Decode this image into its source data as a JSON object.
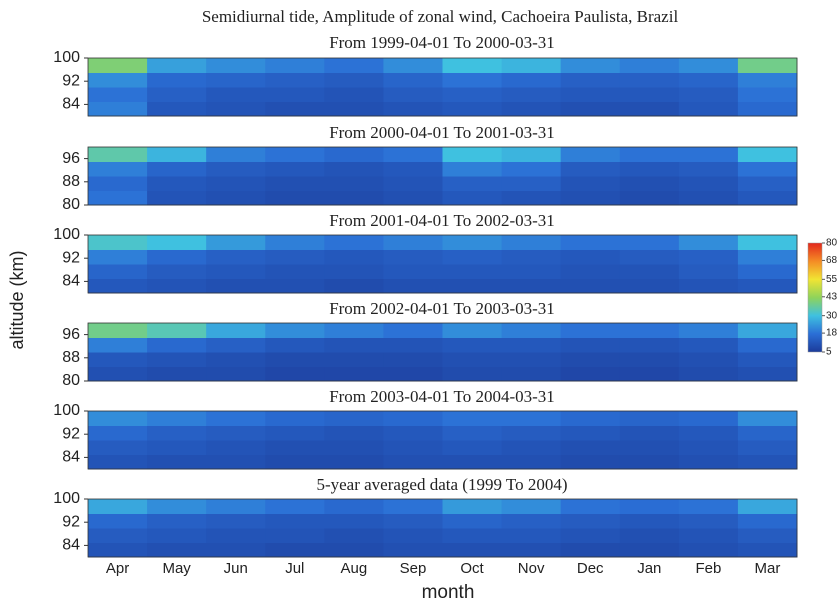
{
  "chart_data": {
    "type": "heatmap",
    "title": "Semidiurnal tide, Amplitude of zonal wind, Cachoeira Paulista, Brazil",
    "xlabel": "month",
    "ylabel": "altitude (km)",
    "categories": [
      "Apr",
      "May",
      "Jun",
      "Jul",
      "Aug",
      "Sep",
      "Oct",
      "Nov",
      "Dec",
      "Jan",
      "Feb",
      "Mar"
    ],
    "alt_bins": [
      80,
      85,
      90,
      95,
      100
    ],
    "colorbar": {
      "lim": [
        5,
        80
      ],
      "ticks": [
        5,
        18,
        30,
        43,
        55,
        68,
        80
      ],
      "colors": [
        "#1c3b9a",
        "#2b6fd6",
        "#3fc1e0",
        "#8fd35a",
        "#f1e433",
        "#f48b25",
        "#e3271c"
      ]
    },
    "panels": [
      {
        "title": "From 1999-04-01 To 2000-03-31",
        "ylim": [
          80,
          100
        ],
        "yticks": [
          100,
          92,
          84
        ],
        "z": [
          [
            20,
            12,
            11,
            10,
            10,
            11,
            12,
            11,
            10,
            10,
            12,
            16
          ],
          [
            18,
            14,
            12,
            12,
            11,
            13,
            14,
            13,
            12,
            12,
            13,
            18
          ],
          [
            22,
            16,
            15,
            14,
            13,
            15,
            18,
            16,
            14,
            14,
            15,
            20
          ],
          [
            40,
            25,
            22,
            20,
            18,
            22,
            30,
            28,
            22,
            20,
            22,
            38
          ]
        ]
      },
      {
        "title": "From 2000-04-01 To 2001-03-31",
        "ylim": [
          80,
          100
        ],
        "yticks": [
          96,
          88,
          80
        ],
        "z": [
          [
            18,
            11,
            10,
            9,
            9,
            10,
            12,
            11,
            10,
            9,
            10,
            12
          ],
          [
            16,
            12,
            11,
            10,
            10,
            11,
            14,
            14,
            11,
            10,
            11,
            14
          ],
          [
            20,
            15,
            13,
            12,
            11,
            12,
            20,
            18,
            13,
            12,
            13,
            18
          ],
          [
            35,
            28,
            20,
            18,
            16,
            18,
            30,
            28,
            20,
            18,
            18,
            30
          ]
        ]
      },
      {
        "title": "From 2001-04-01 To 2002-03-31",
        "ylim": [
          80,
          100
        ],
        "yticks": [
          100,
          92,
          84
        ],
        "z": [
          [
            12,
            11,
            10,
            10,
            9,
            10,
            10,
            10,
            10,
            10,
            11,
            12
          ],
          [
            15,
            13,
            12,
            11,
            11,
            12,
            12,
            12,
            11,
            11,
            13,
            16
          ],
          [
            20,
            16,
            14,
            13,
            12,
            13,
            14,
            13,
            12,
            13,
            14,
            20
          ],
          [
            32,
            30,
            24,
            20,
            18,
            20,
            22,
            20,
            18,
            18,
            22,
            30
          ]
        ]
      },
      {
        "title": "From 2002-04-01 To 2003-03-31",
        "ylim": [
          80,
          100
        ],
        "yticks": [
          96,
          88,
          80
        ],
        "z": [
          [
            10,
            9,
            9,
            8,
            8,
            8,
            9,
            9,
            8,
            8,
            9,
            10
          ],
          [
            12,
            11,
            10,
            9,
            9,
            9,
            10,
            10,
            9,
            9,
            10,
            12
          ],
          [
            20,
            16,
            14,
            12,
            11,
            11,
            12,
            12,
            11,
            11,
            12,
            16
          ],
          [
            38,
            34,
            26,
            22,
            20,
            18,
            22,
            20,
            18,
            18,
            20,
            26
          ]
        ]
      },
      {
        "title": "From 2003-04-01 To 2004-03-31",
        "ylim": [
          80,
          100
        ],
        "yticks": [
          100,
          92,
          84
        ],
        "z": [
          [
            11,
            10,
            10,
            9,
            9,
            10,
            10,
            10,
            9,
            9,
            10,
            11
          ],
          [
            13,
            12,
            11,
            10,
            10,
            11,
            12,
            11,
            10,
            10,
            11,
            13
          ],
          [
            16,
            14,
            13,
            12,
            11,
            12,
            14,
            13,
            12,
            11,
            12,
            15
          ],
          [
            22,
            20,
            18,
            16,
            15,
            16,
            18,
            18,
            16,
            15,
            16,
            22
          ]
        ]
      },
      {
        "title": "5-year averaged data (1999 To 2004)",
        "ylim": [
          80,
          100
        ],
        "yticks": [
          100,
          92,
          84
        ],
        "z": [
          [
            11,
            10,
            10,
            9,
            9,
            10,
            10,
            10,
            9,
            9,
            10,
            11
          ],
          [
            13,
            12,
            11,
            11,
            10,
            11,
            12,
            12,
            11,
            10,
            11,
            13
          ],
          [
            16,
            14,
            13,
            12,
            12,
            13,
            15,
            14,
            13,
            12,
            13,
            16
          ],
          [
            26,
            22,
            20,
            18,
            16,
            18,
            24,
            22,
            18,
            17,
            18,
            26
          ]
        ]
      }
    ]
  }
}
